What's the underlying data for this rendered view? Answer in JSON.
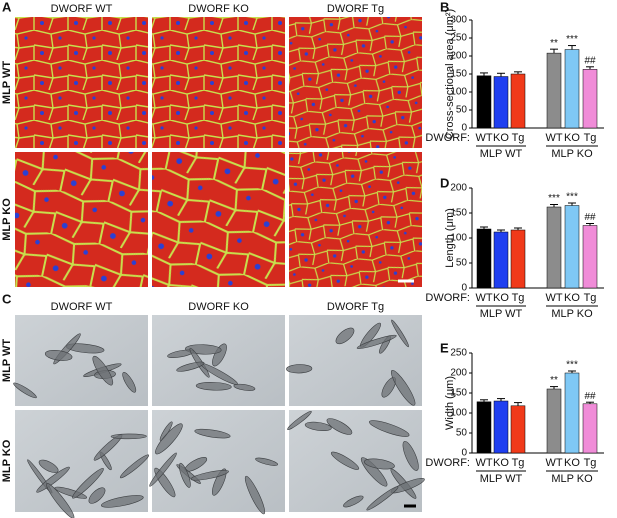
{
  "figure": {
    "panel_labels": [
      "A",
      "B",
      "C",
      "D",
      "E"
    ],
    "micrographs": [
      {
        "columns": [
          "DWORF WT",
          "DWORF KO",
          "DWORF Tg"
        ],
        "rows": [
          "MLP WT",
          "MLP KO"
        ]
      },
      {
        "columns": [
          "DWORF WT",
          "DWORF KO",
          "DWORF Tg"
        ],
        "rows": [
          "MLP WT",
          "MLP KO"
        ]
      }
    ]
  },
  "chart_data": [
    {
      "type": "bar",
      "ylabel": "Cross-sectional area (μm²)",
      "category_axis_label": "DWORF:",
      "categories": [
        "WT",
        "KO",
        "Tg",
        "WT",
        "KO",
        "Tg"
      ],
      "groups": [
        "MLP WT",
        "MLP KO"
      ],
      "values": [
        145,
        143,
        150,
        208,
        218,
        163
      ],
      "errors": [
        8,
        9,
        6,
        11,
        11,
        7
      ],
      "annotations": [
        null,
        null,
        null,
        "**",
        "***",
        "##"
      ],
      "colors": [
        "#000000",
        "#1f3ff0",
        "#f03a1a",
        "#8c8c8c",
        "#7fc8f5",
        "#f08cd8"
      ],
      "ylim": [
        0,
        300
      ],
      "yticks": [
        0,
        50,
        100,
        150,
        200,
        250,
        300
      ]
    },
    {
      "type": "bar",
      "ylabel": "Length (μm)",
      "category_axis_label": "DWORF:",
      "categories": [
        "WT",
        "KO",
        "Tg",
        "WT",
        "KO",
        "Tg"
      ],
      "groups": [
        "MLP WT",
        "MLP KO"
      ],
      "values": [
        118,
        112,
        116,
        162,
        165,
        125
      ],
      "errors": [
        4,
        4,
        4,
        5,
        5,
        4
      ],
      "annotations": [
        null,
        null,
        null,
        "***",
        "***",
        "##"
      ],
      "colors": [
        "#000000",
        "#1f3ff0",
        "#f03a1a",
        "#8c8c8c",
        "#7fc8f5",
        "#f08cd8"
      ],
      "ylim": [
        0,
        200
      ],
      "yticks": [
        0,
        50,
        100,
        150,
        200
      ]
    },
    {
      "type": "bar",
      "ylabel": "Width (μm)",
      "category_axis_label": "DWORF:",
      "categories": [
        "WT",
        "KO",
        "Tg",
        "WT",
        "KO",
        "Tg"
      ],
      "groups": [
        "MLP WT",
        "MLP KO"
      ],
      "values": [
        128,
        130,
        118,
        160,
        200,
        123
      ],
      "errors": [
        5,
        6,
        8,
        6,
        5,
        4
      ],
      "annotations": [
        null,
        null,
        null,
        "**",
        "***",
        "##"
      ],
      "colors": [
        "#000000",
        "#1f3ff0",
        "#f03a1a",
        "#8c8c8c",
        "#7fc8f5",
        "#f08cd8"
      ],
      "ylim": [
        0,
        250
      ],
      "yticks": [
        0,
        50,
        100,
        150,
        200,
        250
      ]
    }
  ]
}
